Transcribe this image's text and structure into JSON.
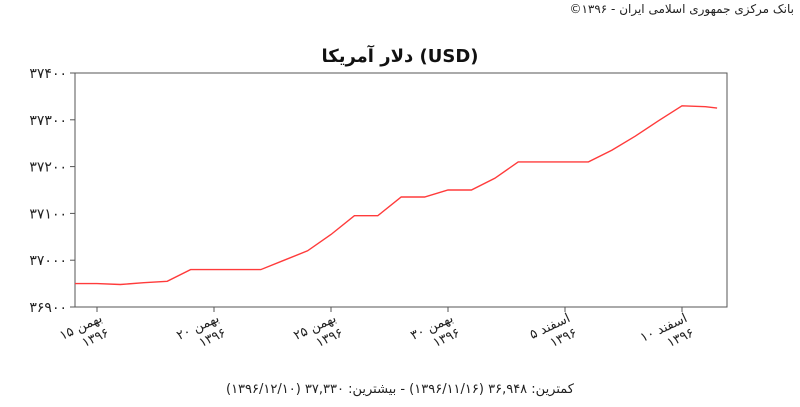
{
  "credit": "بانک مرکزی جمهوری اسلامی ایران - ۱۳۹۶©",
  "footer": "کمترین: ۳۶,۹۴۸ (۱۳۹۶/۱۱/۱۶) - بیشترین: ۳۷,۳۳۰ (۱۳۹۶/۱۲/۱۰)",
  "chart_data": {
    "type": "line",
    "title": "دلار آمریکا (USD)",
    "xlabel": "",
    "ylabel": "",
    "ylim": [
      36900,
      37400
    ],
    "xlim": [
      0,
      26.5
    ],
    "grid": false,
    "y_ticks": [
      {
        "value": 36900,
        "label": "۳۶۹۰۰"
      },
      {
        "value": 37000,
        "label": "۳۷۰۰۰"
      },
      {
        "value": 37100,
        "label": "۳۷۱۰۰"
      },
      {
        "value": 37200,
        "label": "۳۷۲۰۰"
      },
      {
        "value": 37300,
        "label": "۳۷۳۰۰"
      },
      {
        "value": 37400,
        "label": "۳۷۴۰۰"
      }
    ],
    "x_ticks": [
      {
        "x": 0,
        "line1": "۱۵ بهمن",
        "line2": "۱۳۹۶"
      },
      {
        "x": 5,
        "line1": "۲۰ بهمن",
        "line2": "۱۳۹۶"
      },
      {
        "x": 10,
        "line1": "۲۵ بهمن",
        "line2": "۱۳۹۶"
      },
      {
        "x": 15,
        "line1": "۳۰ بهمن",
        "line2": "۱۳۹۶"
      },
      {
        "x": 20,
        "line1": "۵ اسفند",
        "line2": "۱۳۹۶"
      },
      {
        "x": 25,
        "line1": "۱۰ اسفند",
        "line2": "۱۳۹۶"
      }
    ],
    "series": [
      {
        "color": "#ff3b3b",
        "x": [
          -1,
          0,
          1,
          2,
          3,
          4,
          5,
          6,
          7,
          8,
          9,
          10,
          11,
          12,
          13,
          14,
          15,
          16,
          17,
          18,
          19,
          20,
          21,
          22,
          23,
          24,
          25,
          26,
          26.5
        ],
        "y": [
          36950,
          36950,
          36948,
          36952,
          36955,
          36980,
          36980,
          36980,
          36980,
          37000,
          37020,
          37055,
          37095,
          37095,
          37135,
          37135,
          37150,
          37150,
          37175,
          37210,
          37210,
          37210,
          37210,
          37235,
          37265,
          37298,
          37330,
          37328,
          37325
        ]
      }
    ]
  }
}
